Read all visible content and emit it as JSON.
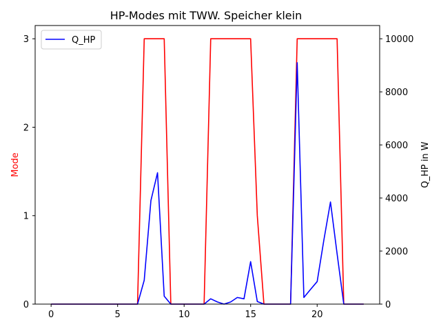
{
  "chart_data": {
    "type": "line",
    "title": "HP-Modes mit TWW. Speicher klein",
    "xlabel": "",
    "ylabel_left": "Mode",
    "ylabel_right": "Q_HP in W",
    "xlim": [
      -1.2,
      24.7
    ],
    "ylim_left": [
      0,
      3.15
    ],
    "ylim_right": [
      0,
      10500
    ],
    "xticks": [
      0,
      5,
      10,
      15,
      20
    ],
    "yticks_left": [
      0,
      1,
      2,
      3
    ],
    "yticks_right": [
      0,
      2000,
      4000,
      6000,
      8000,
      10000
    ],
    "grid": false,
    "legend": {
      "position": "top-left",
      "entries": [
        "Q_HP"
      ]
    },
    "colors": {
      "mode": "#ff0000",
      "q_hp": "#0000ff",
      "left_label": "#ff0000"
    },
    "series": [
      {
        "id": "mode",
        "axis": "left",
        "x": [
          0,
          0.5,
          1,
          1.5,
          2,
          2.5,
          3,
          3.5,
          4,
          4.5,
          5,
          5.5,
          6,
          6.5,
          7,
          7.5,
          8,
          8.5,
          9,
          9.5,
          10,
          10.5,
          11,
          11.5,
          12,
          12.5,
          13,
          13.5,
          14,
          14.5,
          15,
          15.5,
          16,
          16.5,
          17,
          17.5,
          18,
          18.5,
          19,
          19.5,
          20,
          20.5,
          21,
          21.5,
          22,
          22.5,
          23,
          23.5
        ],
        "values": [
          0,
          0,
          0,
          0,
          0,
          0,
          0,
          0,
          0,
          0,
          0,
          0,
          0,
          0,
          3,
          3,
          3,
          3,
          0,
          0,
          0,
          0,
          0,
          0,
          3,
          3,
          3,
          3,
          3,
          3,
          3,
          1,
          0,
          0,
          0,
          0,
          0,
          3,
          3,
          3,
          3,
          3,
          3,
          3,
          0,
          0,
          0,
          0
        ]
      },
      {
        "id": "q_hp",
        "name": "Q_HP",
        "axis": "right",
        "x": [
          0,
          0.5,
          1,
          1.5,
          2,
          2.5,
          3,
          3.5,
          4,
          4.5,
          5,
          5.5,
          6,
          6.5,
          7,
          7.5,
          8,
          8.5,
          9,
          9.5,
          10,
          10.5,
          11,
          11.5,
          12,
          12.5,
          13,
          13.5,
          14,
          14.5,
          15,
          15.5,
          16,
          16.5,
          17,
          17.5,
          18,
          18.5,
          19,
          19.5,
          20,
          20.5,
          21,
          21.5,
          22,
          22.5,
          23,
          23.5
        ],
        "values": [
          0,
          0,
          0,
          0,
          0,
          0,
          0,
          0,
          0,
          0,
          0,
          0,
          0,
          0,
          900,
          3900,
          4950,
          300,
          0,
          0,
          0,
          0,
          0,
          0,
          200,
          80,
          0,
          80,
          250,
          200,
          1600,
          100,
          0,
          0,
          0,
          0,
          0,
          9100,
          250,
          550,
          850,
          2400,
          3850,
          1900,
          0,
          0,
          0,
          0
        ]
      }
    ]
  }
}
